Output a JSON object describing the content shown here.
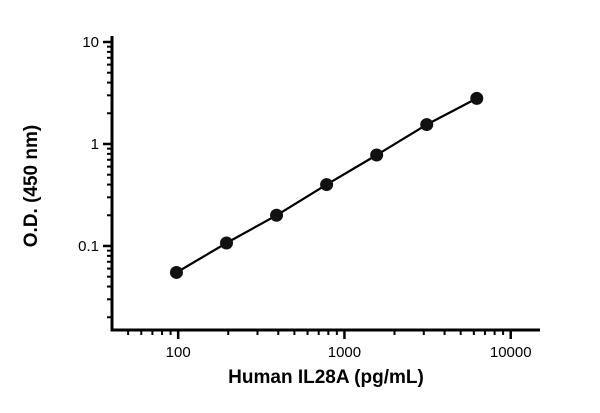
{
  "chart_data": {
    "type": "line",
    "title": "",
    "xlabel": "Human IL28A (pg/mL)",
    "ylabel": "O.D. (450 nm)",
    "x_scale": "log",
    "y_scale": "log",
    "x": [
      97.66,
      195.31,
      390.63,
      781.25,
      1562.5,
      3125,
      6250
    ],
    "y": [
      0.055,
      0.107,
      0.2,
      0.4,
      0.78,
      1.55,
      2.8
    ],
    "x_ticks": [
      100,
      1000,
      10000
    ],
    "y_ticks": [
      0.1,
      1,
      10
    ],
    "xlim": [
      40,
      15000
    ],
    "ylim": [
      0.015,
      10
    ],
    "grid": false,
    "legend": false,
    "line_color": "#000000",
    "marker_color": "#111111",
    "axis_color": "#000000",
    "marker": "circle"
  }
}
